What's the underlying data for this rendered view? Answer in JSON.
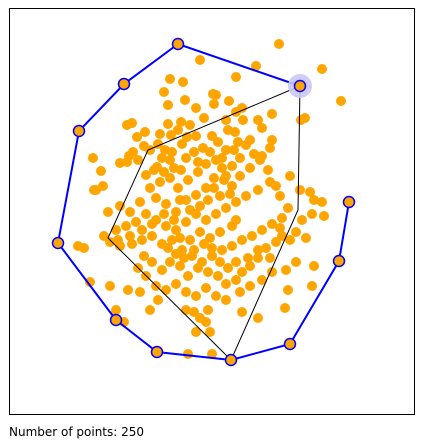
{
  "status": {
    "label": "Number of points:",
    "count": "250"
  },
  "colors": {
    "point_fill": "#ffa500",
    "hull_line": "#0000ff",
    "inner_line": "#000000",
    "highlight": "#c8c8f5",
    "frame": "#000000",
    "background": "#ffffff"
  },
  "diagram": {
    "description_type": "convex-hull-of-point-set",
    "point_count": 250
  }
}
